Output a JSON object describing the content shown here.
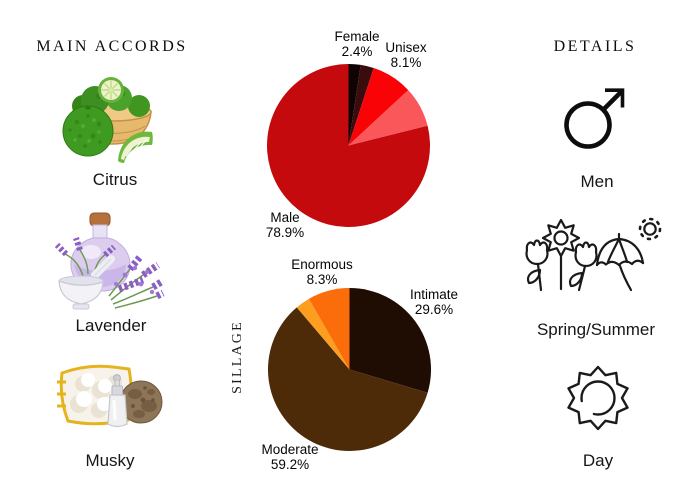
{
  "page": {
    "background": "#ffffff",
    "text_color": "#111111"
  },
  "left_panel": {
    "title": "MAIN ACCORDS",
    "accords": [
      {
        "label": "Citrus",
        "image": "bergamot-fruits-photo"
      },
      {
        "label": "Lavender",
        "image": "lavender-bottle-photo"
      },
      {
        "label": "Musky",
        "image": "musk-pod-fur-photo"
      }
    ]
  },
  "right_panel": {
    "title": "DETAILS",
    "items": [
      {
        "label": "Men",
        "icon": "mars-symbol-icon"
      },
      {
        "label": "Spring/Summer",
        "icon": "flowers-umbrella-sun-icon"
      },
      {
        "label": "Day",
        "icon": "day-sun-icon"
      }
    ]
  },
  "chart_data": [
    {
      "type": "pie",
      "name": "gender-votes",
      "direction": "clockwise",
      "start_angle_deg": 0,
      "legend": "none",
      "slices": [
        {
          "label": "Female",
          "pct_text": "2.4%",
          "value": 2.4,
          "color": "#100304",
          "label_shown": true
        },
        {
          "label": "",
          "pct_text": "",
          "value": 2.6,
          "color": "#3a0c0e",
          "label_shown": false,
          "value_estimated": true
        },
        {
          "label": "Unisex",
          "pct_text": "8.1%",
          "value": 8.1,
          "color": "#f90307",
          "label_shown": true
        },
        {
          "label": "",
          "pct_text": "",
          "value": 8.0,
          "color": "#f9575a",
          "label_shown": false,
          "value_estimated": true
        },
        {
          "label": "Male",
          "pct_text": "78.9%",
          "value": 78.9,
          "color": "#c40a0c",
          "label_shown": true
        }
      ]
    },
    {
      "type": "pie",
      "name": "sillage-votes",
      "axis_label": "SILLAGE",
      "direction": "clockwise",
      "start_angle_deg": 0,
      "legend": "none",
      "slices": [
        {
          "label": "Intimate",
          "pct_text": "29.6%",
          "value": 29.6,
          "color": "#1f0c02",
          "label_shown": true
        },
        {
          "label": "Moderate",
          "pct_text": "59.2%",
          "value": 59.2,
          "color": "#4e2b08",
          "label_shown": true
        },
        {
          "label": "",
          "pct_text": "",
          "value": 2.9,
          "color": "#fe9e20",
          "label_shown": false,
          "value_estimated": true
        },
        {
          "label": "Enormous",
          "pct_text": "8.3%",
          "value": 8.3,
          "color": "#fb6c0a",
          "label_shown": true
        }
      ]
    }
  ]
}
